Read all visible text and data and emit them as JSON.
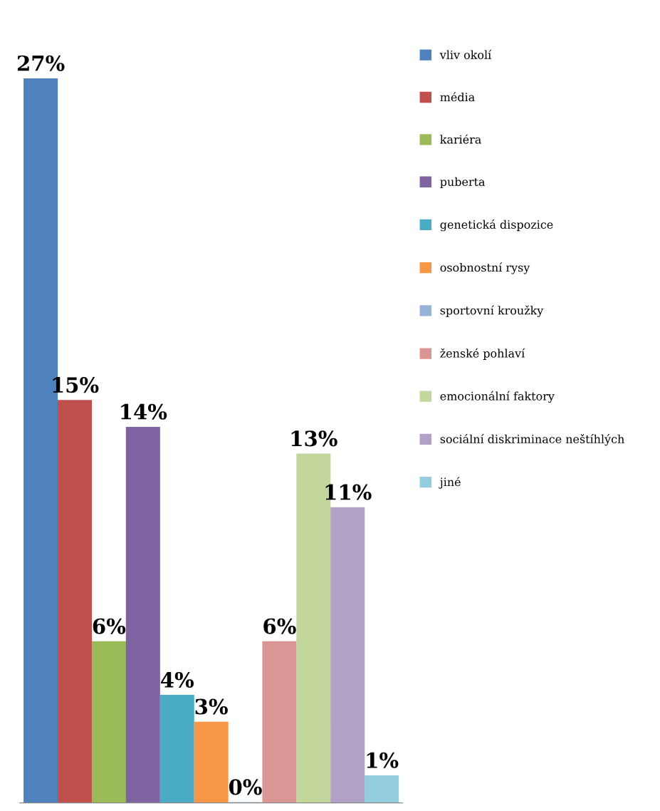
{
  "chart_data": {
    "type": "bar",
    "categories": [
      null
    ],
    "legend": "right",
    "series": [
      {
        "name": "vliv okolí",
        "color": "#4f81bd",
        "values": [
          27
        ],
        "value_labels": [
          "27%"
        ]
      },
      {
        "name": "média",
        "color": "#c0504d",
        "values": [
          15
        ],
        "value_labels": [
          "15%"
        ]
      },
      {
        "name": "kariéra",
        "color": "#9bbb59",
        "values": [
          6
        ],
        "value_labels": [
          "6%"
        ]
      },
      {
        "name": "puberta",
        "color": "#8064a2",
        "values": [
          14
        ],
        "value_labels": [
          "14%"
        ]
      },
      {
        "name": "genetická dispozice",
        "color": "#4bacc6",
        "values": [
          4
        ],
        "value_labels": [
          "4%"
        ]
      },
      {
        "name": "osobnostní rysy",
        "color": "#f79646",
        "values": [
          3
        ],
        "value_labels": [
          "3%"
        ]
      },
      {
        "name": "sportovní kroužky",
        "color": "#95b3d7",
        "values": [
          0
        ],
        "value_labels": [
          "0%"
        ]
      },
      {
        "name": "ženské pohlaví",
        "color": "#da9694",
        "values": [
          6
        ],
        "value_labels": [
          "6%"
        ]
      },
      {
        "name": "emocionální faktory",
        "color": "#c3d69b",
        "values": [
          13
        ],
        "value_labels": [
          "13%"
        ]
      },
      {
        "name": "sociální diskriminace neštíhlých",
        "color": "#b2a1c7",
        "values": [
          11
        ],
        "value_labels": [
          "11%"
        ]
      },
      {
        "name": "jiné",
        "color": "#93cddd",
        "values": [
          1
        ],
        "value_labels": [
          "1%"
        ]
      }
    ]
  }
}
